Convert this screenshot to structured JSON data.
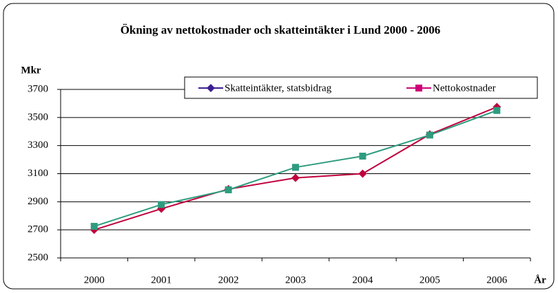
{
  "chart_data": {
    "type": "line",
    "title": "Ökning av nettokostnader och skatteintäkter i Lund 2000 - 2006",
    "y_label": "Mkr",
    "x_label": "År",
    "categories": [
      "2000",
      "2001",
      "2002",
      "2003",
      "2004",
      "2005",
      "2006"
    ],
    "series": [
      {
        "name": "Skatteintäkter, statsbidrag",
        "color": "#c0003c",
        "legend_color": "#3b1f8f",
        "marker": "diamond",
        "values": [
          2700,
          2850,
          2990,
          3070,
          3100,
          3380,
          3575
        ]
      },
      {
        "name": "Nettokostnader",
        "color": "#2e9c7f",
        "legend_color": "#cc0077",
        "marker": "square",
        "values": [
          2725,
          2880,
          2985,
          3145,
          3225,
          3375,
          3550
        ]
      }
    ],
    "ylim": [
      2500,
      3700
    ],
    "yticks": [
      2500,
      2700,
      2900,
      3100,
      3300,
      3500,
      3700
    ],
    "grid": true,
    "legend": "top-right"
  }
}
